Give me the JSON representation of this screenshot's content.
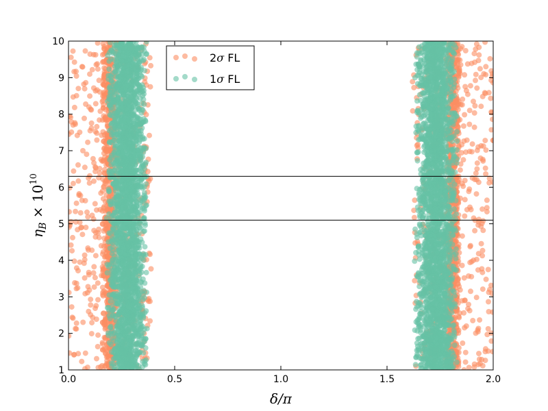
{
  "chart_data": {
    "type": "scatter",
    "title": "",
    "xlabel": "δ/π",
    "ylabel": "η_B × 10^10",
    "ylabel_main": "η",
    "ylabel_sub": "B",
    "ylabel_times": " × 10",
    "ylabel_exp": "10",
    "xlim": [
      0.0,
      2.0
    ],
    "ylim": [
      1,
      10
    ],
    "xticks": [
      "0.0",
      "0.5",
      "1.0",
      "1.5",
      "2.0"
    ],
    "yticks": [
      "1",
      "2",
      "3",
      "4",
      "5",
      "6",
      "7",
      "8",
      "9",
      "10"
    ],
    "hlines": [
      5.1,
      6.3
    ],
    "legend_position": "top-left",
    "grid": false,
    "series": [
      {
        "name": "2σ FL",
        "legend_main": "2",
        "legend_greek": "σ",
        "legend_suffix": " FL",
        "color": "#fc8d62",
        "bands": [
          [
            0.0,
            0.39
          ],
          [
            1.62,
            2.0
          ]
        ]
      },
      {
        "name": "1σ FL",
        "legend_main": "1",
        "legend_greek": "σ",
        "legend_suffix": " FL",
        "color": "#66c2a5",
        "bands": [
          [
            0.19,
            0.36
          ],
          [
            1.64,
            1.82
          ]
        ]
      }
    ]
  }
}
